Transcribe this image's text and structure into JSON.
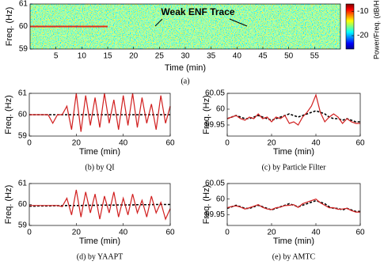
{
  "chart_data": [
    {
      "type": "spectrogram",
      "ylabel": "Freq. (Hz)",
      "xlabel": "Time (min)",
      "caption": "(a)",
      "annotation": "Weak ENF Trace",
      "xlim": [
        0,
        60
      ],
      "xticks": [
        5,
        10,
        15,
        20,
        25,
        30,
        35,
        40,
        45,
        50,
        55
      ],
      "ylim": [
        59,
        61
      ],
      "yticks": [
        59,
        60,
        61
      ],
      "colorbar_label": "Power/Freq. (dB/Hz)",
      "clim": [
        -25.5,
        -7
      ],
      "cticks": [
        -10,
        -20
      ],
      "x": [
        0,
        15
      ],
      "series": [
        {
          "color": "#e0301c",
          "values": [
            60,
            60
          ]
        }
      ]
    },
    {
      "type": "line",
      "ylabel": "Freq. (Hz)",
      "xlabel": "Time (min)",
      "caption": "(b) by QI",
      "xlim": [
        0,
        60
      ],
      "xticks": [
        0,
        20,
        40,
        60
      ],
      "ylim": [
        59,
        61
      ],
      "yticks": [
        59,
        60,
        61
      ],
      "x": [
        0,
        2,
        4,
        6,
        8,
        10,
        12,
        14,
        16,
        18,
        20,
        22,
        24,
        26,
        28,
        30,
        32,
        34,
        36,
        38,
        40,
        42,
        44,
        46,
        48,
        50,
        52,
        54,
        56,
        58,
        60
      ],
      "series": [
        {
          "color": "#000000",
          "style": "dashed",
          "values": [
            60,
            60,
            60,
            60,
            60,
            60,
            60,
            60,
            60,
            60,
            60,
            60,
            60,
            60,
            60,
            60,
            60,
            60,
            60,
            60,
            60,
            60,
            60,
            60,
            60,
            60,
            60,
            60,
            60,
            60,
            60
          ]
        },
        {
          "color": "#d11f1f",
          "values": [
            60,
            60,
            60,
            60,
            60,
            59.6,
            60,
            60,
            60.4,
            59.3,
            61,
            59.2,
            60.9,
            59.5,
            60.8,
            59.4,
            61,
            59.6,
            60.7,
            59.3,
            60.9,
            59.5,
            61,
            59.4,
            60.8,
            59.6,
            60.5,
            59.3,
            60.9,
            59.6,
            60.4
          ]
        }
      ]
    },
    {
      "type": "line",
      "ylabel": "Freq. (Hz)",
      "xlabel": "Time (min)",
      "caption": "(c) by Particle Filter",
      "xlim": [
        0,
        60
      ],
      "xticks": [
        0,
        20,
        40,
        60
      ],
      "ylim": [
        59.915,
        60.05
      ],
      "yticks": [
        59.95,
        60,
        60.05
      ],
      "x": [
        0,
        2,
        4,
        6,
        8,
        10,
        12,
        14,
        16,
        18,
        20,
        22,
        24,
        26,
        28,
        30,
        32,
        34,
        36,
        38,
        40,
        42,
        44,
        46,
        48,
        50,
        52,
        54,
        56,
        58,
        60
      ],
      "series": [
        {
          "color": "#000000",
          "style": "dashed",
          "values": [
            59.97,
            59.975,
            59.98,
            59.975,
            59.97,
            59.97,
            59.975,
            59.98,
            59.975,
            59.97,
            59.965,
            59.97,
            59.975,
            59.98,
            59.985,
            59.98,
            59.975,
            59.98,
            59.985,
            59.99,
            59.995,
            59.99,
            59.985,
            59.975,
            59.97,
            59.97,
            59.965,
            59.97,
            59.965,
            59.96,
            59.96
          ]
        },
        {
          "color": "#d11f1f",
          "values": [
            59.97,
            59.975,
            59.98,
            59.97,
            59.965,
            59.975,
            59.97,
            59.985,
            59.97,
            59.975,
            59.96,
            59.975,
            59.97,
            59.98,
            59.955,
            59.96,
            59.95,
            59.975,
            59.99,
            60.01,
            60.045,
            59.99,
            59.96,
            59.975,
            59.985,
            59.975,
            59.955,
            59.97,
            59.96,
            59.955,
            59.955
          ]
        }
      ]
    },
    {
      "type": "line",
      "ylabel": "Freq. (Hz)",
      "xlabel": "Time (min)",
      "caption": "(d) by YAAPT",
      "xlim": [
        0,
        60
      ],
      "xticks": [
        0,
        20,
        40,
        60
      ],
      "ylim": [
        59,
        61
      ],
      "yticks": [
        59,
        60,
        61
      ],
      "x": [
        0,
        2,
        4,
        6,
        8,
        10,
        12,
        14,
        16,
        18,
        20,
        22,
        24,
        26,
        28,
        30,
        32,
        34,
        36,
        38,
        40,
        42,
        44,
        46,
        48,
        50,
        52,
        54,
        56,
        58,
        60
      ],
      "series": [
        {
          "color": "#000000",
          "style": "dashed",
          "values": [
            59.92,
            59.92,
            59.93,
            59.93,
            59.93,
            59.94,
            59.94,
            59.94,
            59.95,
            59.95,
            59.95,
            59.95,
            59.96,
            59.96,
            59.96,
            59.97,
            59.97,
            59.97,
            59.97,
            59.98,
            59.98,
            59.98,
            59.98,
            59.99,
            59.99,
            59.99,
            59.99,
            60,
            60,
            60,
            60
          ]
        },
        {
          "color": "#d11f1f",
          "values": [
            59.95,
            59.95,
            59.95,
            59.95,
            59.95,
            59.95,
            59.95,
            59.9,
            60.3,
            59.5,
            60.7,
            59.4,
            60.6,
            59.6,
            60.5,
            59.3,
            60.4,
            59.6,
            60.6,
            59.4,
            60.3,
            59.5,
            60.5,
            59.6,
            60.2,
            59.4,
            60.4,
            59.6,
            60.1,
            59.3,
            59.8
          ]
        }
      ]
    },
    {
      "type": "line",
      "ylabel": "Freq. (Hz)",
      "xlabel": "Time (min)",
      "caption": "(e) by AMTC",
      "xlim": [
        0,
        60
      ],
      "xticks": [
        0,
        20,
        40,
        60
      ],
      "ylim": [
        59.915,
        60.05
      ],
      "yticks": [
        59.95,
        60,
        60.05
      ],
      "x": [
        0,
        2,
        4,
        6,
        8,
        10,
        12,
        14,
        16,
        18,
        20,
        22,
        24,
        26,
        28,
        30,
        32,
        34,
        36,
        38,
        40,
        42,
        44,
        46,
        48,
        50,
        52,
        54,
        56,
        58,
        60
      ],
      "series": [
        {
          "color": "#000000",
          "style": "dashed",
          "values": [
            59.97,
            59.975,
            59.98,
            59.975,
            59.97,
            59.97,
            59.975,
            59.98,
            59.975,
            59.97,
            59.965,
            59.97,
            59.975,
            59.98,
            59.985,
            59.98,
            59.975,
            59.98,
            59.985,
            59.99,
            59.995,
            59.99,
            59.985,
            59.975,
            59.97,
            59.97,
            59.965,
            59.97,
            59.965,
            59.96,
            59.96
          ]
        },
        {
          "color": "#d11f1f",
          "values": [
            59.972,
            59.976,
            59.978,
            59.974,
            59.968,
            59.972,
            59.977,
            59.982,
            59.973,
            59.968,
            59.966,
            59.972,
            59.974,
            59.979,
            59.98,
            59.982,
            59.973,
            59.985,
            59.99,
            59.995,
            60,
            59.988,
            59.98,
            59.972,
            59.972,
            59.967,
            59.968,
            59.97,
            59.963,
            59.958,
            59.958
          ]
        }
      ]
    }
  ]
}
